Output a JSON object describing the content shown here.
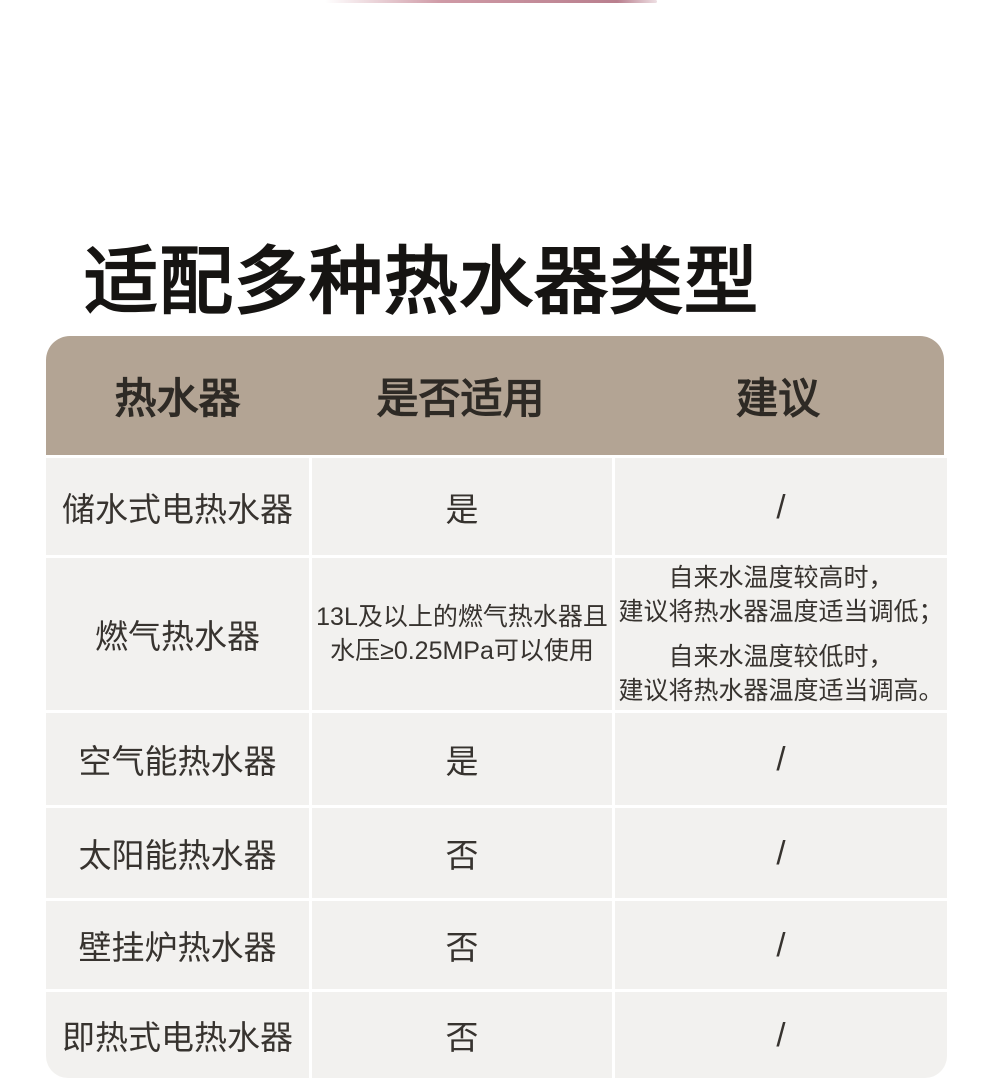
{
  "colors": {
    "table_header_bg": "#b3a494",
    "row_bg": "#f2f1ef",
    "top_line_mid": "#cf9aa6",
    "top_line_end": "#b97f8e"
  },
  "title": "适配多种热水器类型",
  "table": {
    "headers": [
      "热水器",
      "是否适用",
      "建议"
    ],
    "rows": [
      {
        "heater": "储水式电热水器",
        "applicable_lines": [
          "是"
        ],
        "suggestion_paragraphs": [
          [
            "/"
          ]
        ]
      },
      {
        "heater": "燃气热水器",
        "applicable_lines": [
          "13L及以上的燃气热水器且",
          "水压≥0.25MPa可以使用"
        ],
        "suggestion_paragraphs": [
          [
            "自来水温度较高时，",
            "建议将热水器温度适当调低；"
          ],
          [
            "自来水温度较低时，",
            "建议将热水器温度适当调高。"
          ]
        ]
      },
      {
        "heater": "空气能热水器",
        "applicable_lines": [
          "是"
        ],
        "suggestion_paragraphs": [
          [
            "/"
          ]
        ]
      },
      {
        "heater": "太阳能热水器",
        "applicable_lines": [
          "否"
        ],
        "suggestion_paragraphs": [
          [
            "/"
          ]
        ]
      },
      {
        "heater": "壁挂炉热水器",
        "applicable_lines": [
          "否"
        ],
        "suggestion_paragraphs": [
          [
            "/"
          ]
        ]
      },
      {
        "heater": "即热式电热水器",
        "applicable_lines": [
          "否"
        ],
        "suggestion_paragraphs": [
          [
            "/"
          ]
        ]
      }
    ]
  }
}
